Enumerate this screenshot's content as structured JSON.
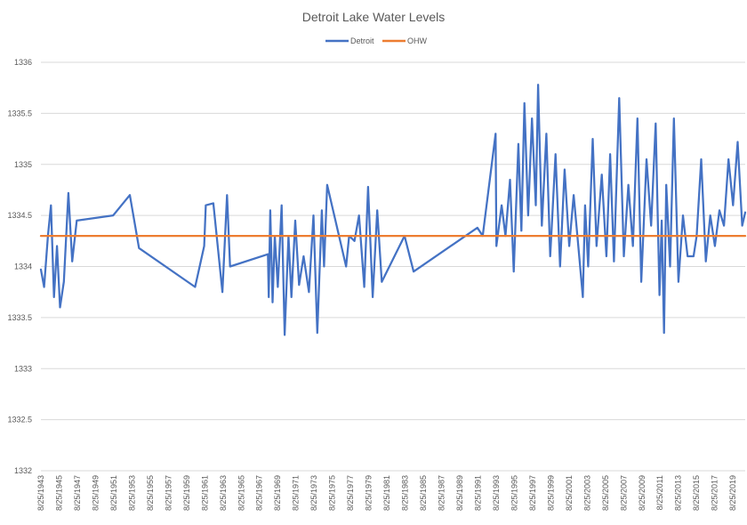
{
  "chart_data": {
    "type": "line",
    "title": "Detroit Lake Water Levels",
    "xlabel": "",
    "ylabel": "",
    "x_start": "8/25/1943",
    "x_end": "12/31/2020",
    "ylim": [
      1332,
      1336
    ],
    "yticks": [
      "1332",
      "1332.5",
      "1333",
      "1333.5",
      "1334",
      "1334.5",
      "1335",
      "1335.5",
      "1336"
    ],
    "xticks": [
      "8/25/1943",
      "8/25/1945",
      "8/25/1947",
      "8/25/1949",
      "8/25/1951",
      "8/25/1953",
      "8/25/1955",
      "8/25/1957",
      "8/25/1959",
      "8/25/1961",
      "8/25/1963",
      "8/25/1965",
      "8/25/1967",
      "8/25/1969",
      "8/25/1971",
      "8/25/1973",
      "8/25/1975",
      "8/25/1977",
      "8/25/1979",
      "8/25/1981",
      "8/25/1983",
      "8/25/1985",
      "8/25/1987",
      "8/25/1989",
      "8/25/1991",
      "8/25/1993",
      "8/25/1995",
      "8/25/1997",
      "8/25/1999",
      "8/25/2001",
      "8/25/2003",
      "8/25/2005",
      "8/25/2007",
      "8/25/2009",
      "8/25/2011",
      "8/25/2013",
      "8/25/2015",
      "8/25/2017",
      "8/25/2019"
    ],
    "grid": "horizontal",
    "legend": "top",
    "series": [
      {
        "name": "Detroit",
        "color": "#4472c4",
        "points": [
          [
            "8/25/1943",
            1333.97
          ],
          [
            "1/1/1944",
            1333.8
          ],
          [
            "6/1/1944",
            1334.3
          ],
          [
            "10/1/1944",
            1334.6
          ],
          [
            "2/1/1945",
            1333.7
          ],
          [
            "6/1/1945",
            1334.2
          ],
          [
            "10/1/1945",
            1333.6
          ],
          [
            "3/1/1946",
            1333.85
          ],
          [
            "9/1/1946",
            1334.72
          ],
          [
            "2/1/1947",
            1334.05
          ],
          [
            "8/1/1947",
            1334.45
          ],
          [
            "8/1/1951",
            1334.5
          ],
          [
            "6/1/1953",
            1334.7
          ],
          [
            "6/1/1954",
            1334.18
          ],
          [
            "8/1/1960",
            1333.8
          ],
          [
            "8/1/1961",
            1334.2
          ],
          [
            "10/1/1961",
            1334.6
          ],
          [
            "8/1/1962",
            1334.62
          ],
          [
            "8/1/1963",
            1333.75
          ],
          [
            "2/1/1964",
            1334.7
          ],
          [
            "6/1/1964",
            1334.0
          ],
          [
            "8/1/1968",
            1334.12
          ],
          [
            "9/1/1968",
            1333.7
          ],
          [
            "11/1/1968",
            1334.55
          ],
          [
            "2/1/1969",
            1333.65
          ],
          [
            "5/1/1969",
            1334.3
          ],
          [
            "9/1/1969",
            1333.8
          ],
          [
            "2/1/1970",
            1334.6
          ],
          [
            "6/1/1970",
            1333.33
          ],
          [
            "11/1/1970",
            1334.3
          ],
          [
            "3/1/1971",
            1333.7
          ],
          [
            "8/1/1971",
            1334.45
          ],
          [
            "1/1/1972",
            1333.82
          ],
          [
            "7/1/1972",
            1334.1
          ],
          [
            "2/1/1973",
            1333.75
          ],
          [
            "8/1/1973",
            1334.5
          ],
          [
            "1/1/1974",
            1333.35
          ],
          [
            "7/1/1974",
            1334.55
          ],
          [
            "10/1/1974",
            1334.0
          ],
          [
            "2/1/1975",
            1334.8
          ],
          [
            "3/1/1977",
            1334.0
          ],
          [
            "7/1/1977",
            1334.3
          ],
          [
            "2/1/1978",
            1334.25
          ],
          [
            "8/1/1978",
            1334.5
          ],
          [
            "3/1/1979",
            1333.8
          ],
          [
            "8/1/1979",
            1334.78
          ],
          [
            "2/1/1980",
            1333.7
          ],
          [
            "8/1/1980",
            1334.55
          ],
          [
            "2/1/1981",
            1333.85
          ],
          [
            "8/1/1983",
            1334.3
          ],
          [
            "8/1/1984",
            1333.95
          ],
          [
            "8/1/1991",
            1334.38
          ],
          [
            "3/1/1992",
            1334.3
          ],
          [
            "8/1/1993",
            1335.3
          ],
          [
            "9/1/1993",
            1334.2
          ],
          [
            "4/1/1994",
            1334.6
          ],
          [
            "9/1/1994",
            1334.3
          ],
          [
            "3/1/1995",
            1334.85
          ],
          [
            "8/1/1995",
            1333.95
          ],
          [
            "2/1/1996",
            1335.2
          ],
          [
            "6/1/1996",
            1334.35
          ],
          [
            "10/1/1996",
            1335.6
          ],
          [
            "3/1/1997",
            1334.5
          ],
          [
            "8/1/1997",
            1335.45
          ],
          [
            "1/1/1998",
            1334.6
          ],
          [
            "4/1/1998",
            1335.78
          ],
          [
            "9/1/1998",
            1334.4
          ],
          [
            "3/1/1999",
            1335.3
          ],
          [
            "8/1/1999",
            1334.1
          ],
          [
            "3/1/2000",
            1335.1
          ],
          [
            "9/1/2000",
            1334.0
          ],
          [
            "3/1/2001",
            1334.95
          ],
          [
            "9/1/2001",
            1334.2
          ],
          [
            "3/1/2002",
            1334.7
          ],
          [
            "9/1/2002",
            1334.2
          ],
          [
            "3/1/2003",
            1333.7
          ],
          [
            "6/1/2003",
            1334.6
          ],
          [
            "10/1/2003",
            1334.0
          ],
          [
            "4/1/2004",
            1335.25
          ],
          [
            "9/1/2004",
            1334.2
          ],
          [
            "4/1/2005",
            1334.9
          ],
          [
            "10/1/2005",
            1334.1
          ],
          [
            "3/1/2006",
            1335.1
          ],
          [
            "8/1/2006",
            1334.05
          ],
          [
            "3/1/2007",
            1335.65
          ],
          [
            "9/1/2007",
            1334.1
          ],
          [
            "3/1/2008",
            1334.8
          ],
          [
            "9/1/2008",
            1334.2
          ],
          [
            "3/1/2009",
            1335.45
          ],
          [
            "8/1/2009",
            1333.85
          ],
          [
            "3/1/2010",
            1335.05
          ],
          [
            "9/1/2010",
            1334.4
          ],
          [
            "3/1/2011",
            1335.4
          ],
          [
            "8/1/2011",
            1333.72
          ],
          [
            "11/1/2011",
            1334.45
          ],
          [
            "2/1/2012",
            1333.35
          ],
          [
            "5/1/2012",
            1334.8
          ],
          [
            "10/1/2012",
            1334.0
          ],
          [
            "3/1/2013",
            1335.45
          ],
          [
            "9/1/2013",
            1333.85
          ],
          [
            "3/1/2014",
            1334.5
          ],
          [
            "9/1/2014",
            1334.1
          ],
          [
            "5/1/2015",
            1334.1
          ],
          [
            "9/1/2015",
            1334.3
          ],
          [
            "3/1/2016",
            1335.05
          ],
          [
            "9/1/2016",
            1334.05
          ],
          [
            "3/1/2017",
            1334.5
          ],
          [
            "9/1/2017",
            1334.2
          ],
          [
            "3/1/2018",
            1334.55
          ],
          [
            "9/1/2018",
            1334.4
          ],
          [
            "3/1/2019",
            1335.05
          ],
          [
            "9/1/2019",
            1334.6
          ],
          [
            "3/1/2020",
            1335.22
          ],
          [
            "9/1/2020",
            1334.4
          ],
          [
            "12/31/2020",
            1334.53
          ]
        ]
      },
      {
        "name": "OHW",
        "color": "#ed7d31",
        "points": [
          [
            "8/25/1943",
            1334.3
          ],
          [
            "12/31/2020",
            1334.3
          ]
        ]
      }
    ]
  }
}
